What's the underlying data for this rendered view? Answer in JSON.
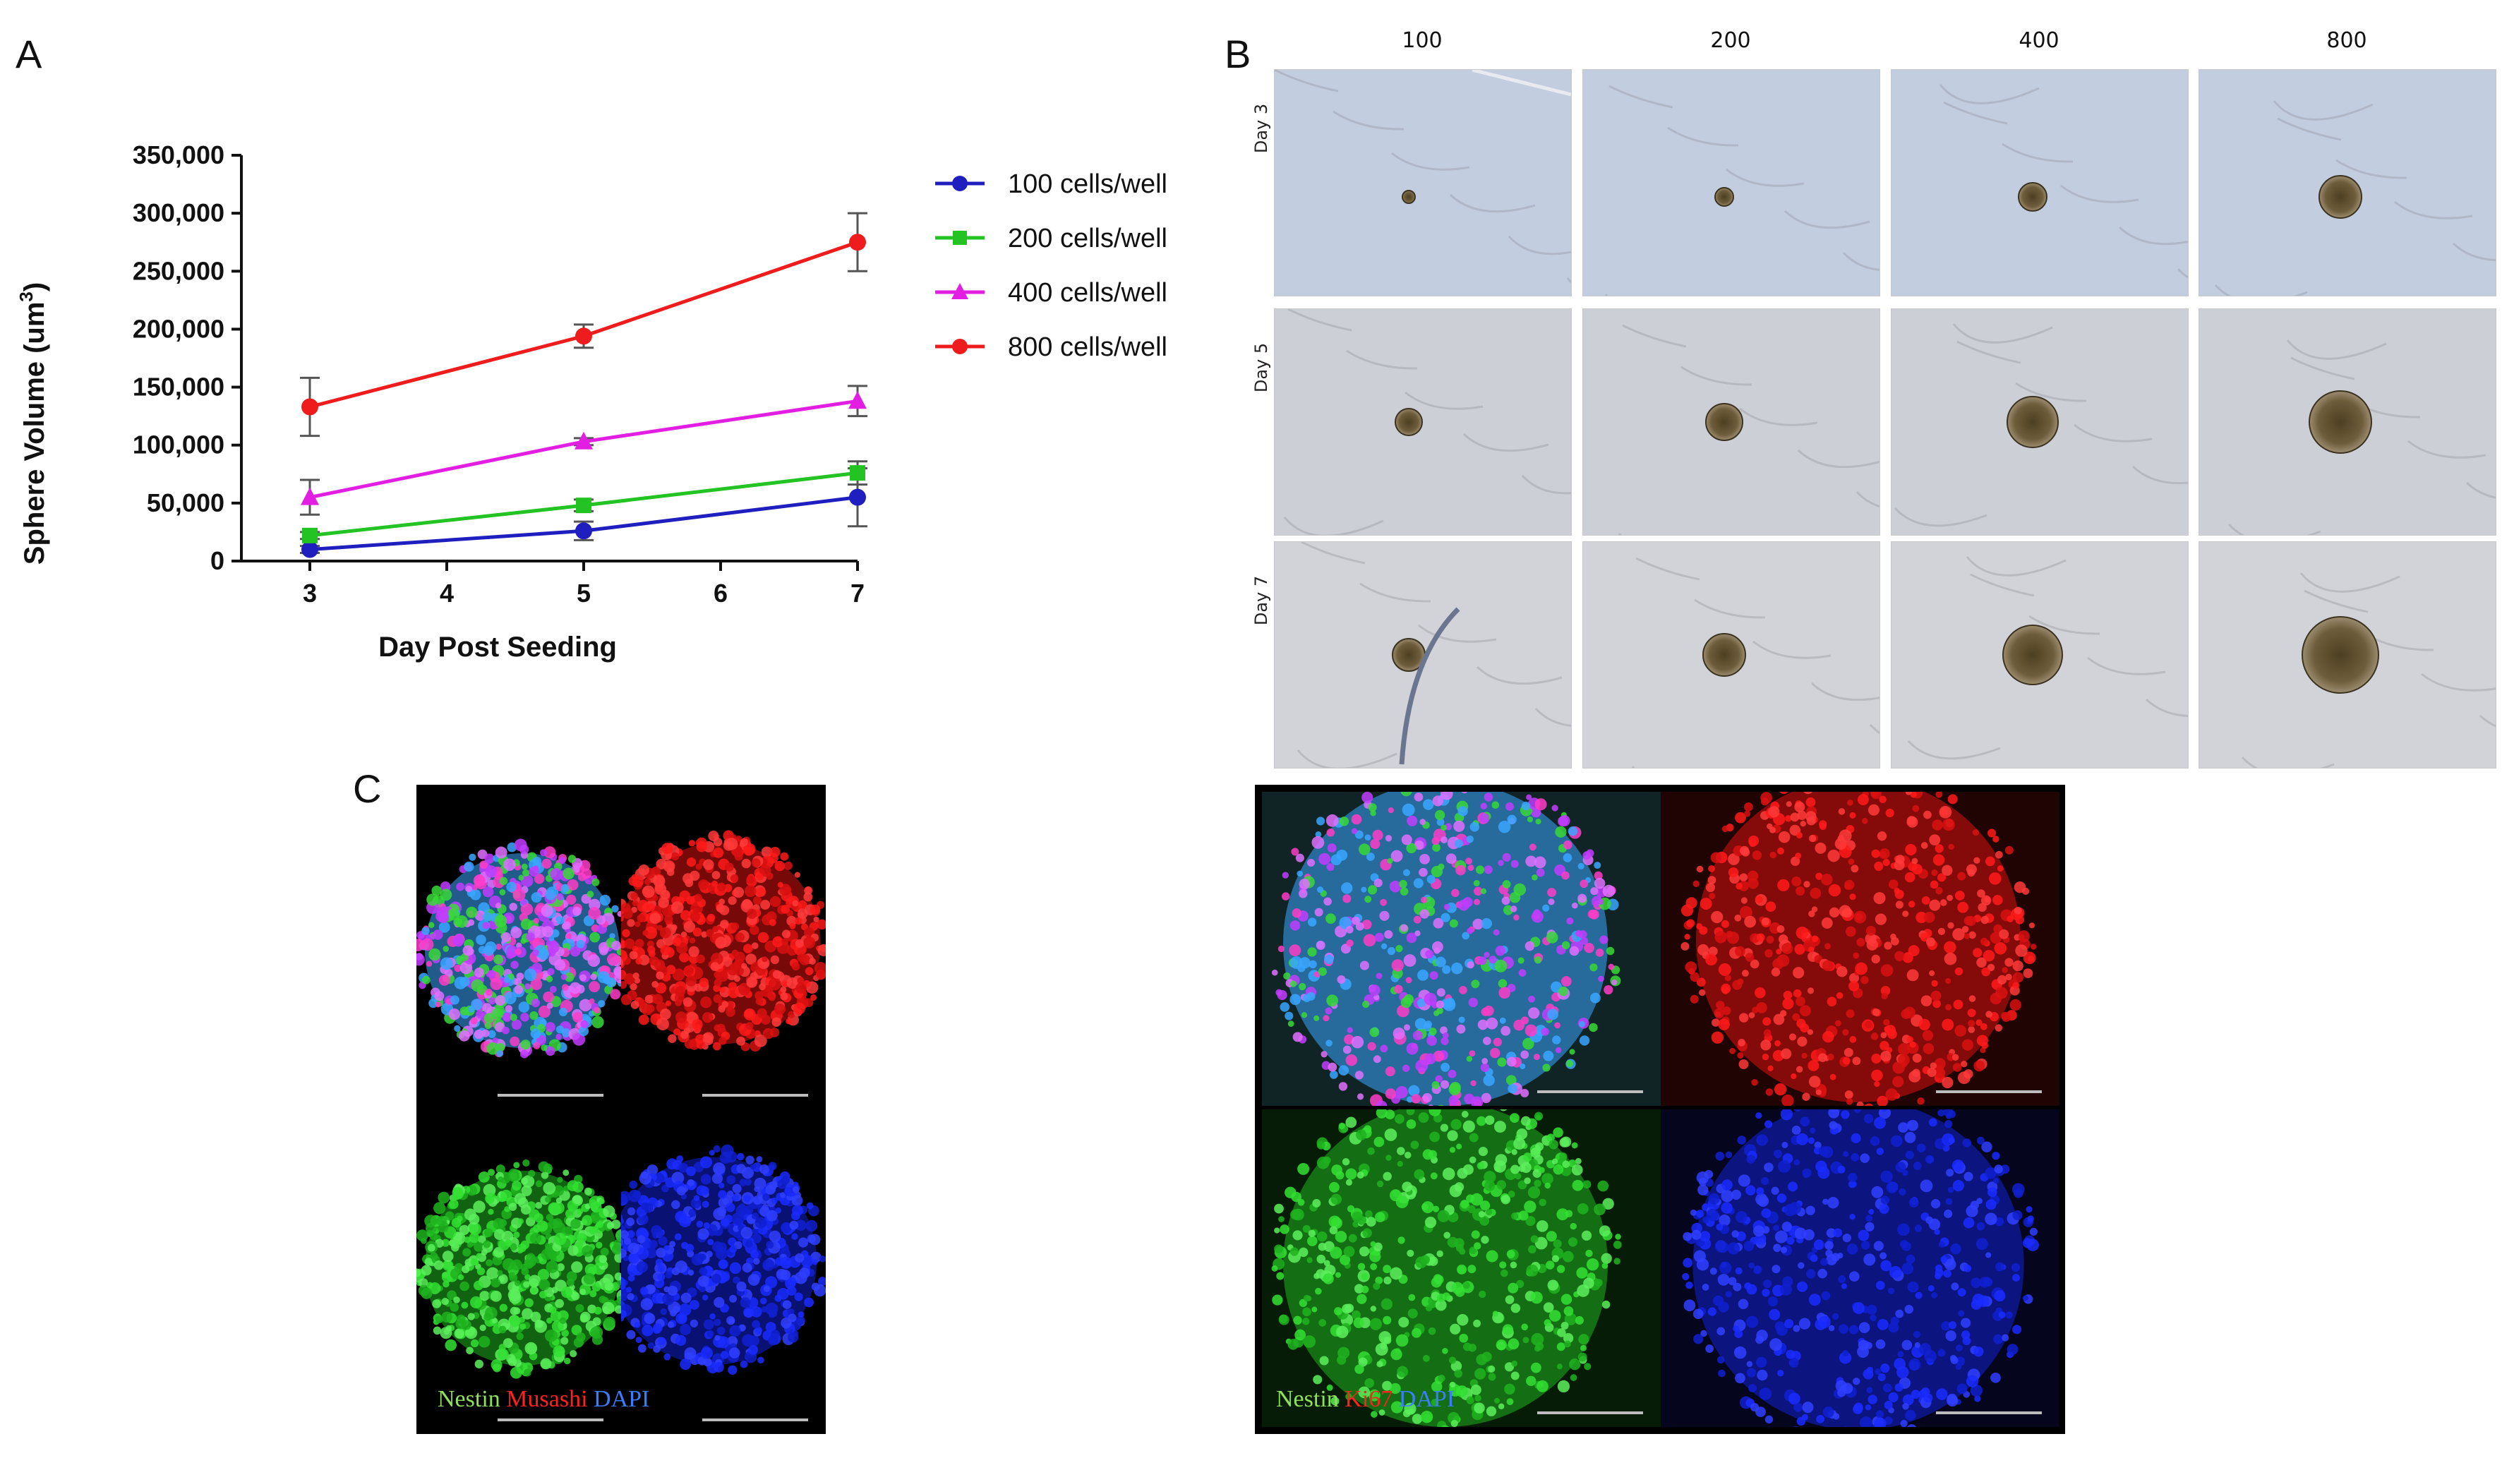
{
  "panels": {
    "a": "A",
    "b": "B",
    "c": "C"
  },
  "chart_data": {
    "type": "line",
    "x": [
      3,
      5,
      7
    ],
    "xticks": [
      "3",
      "4",
      "5",
      "6",
      "7"
    ],
    "xlim": [
      2.5,
      7.0
    ],
    "ylim": [
      0,
      350000
    ],
    "yticks": [
      "0",
      "50,000",
      "100,000",
      "150,000",
      "200,000",
      "250,000",
      "300,000",
      "350,000"
    ],
    "xlabel": "Day Post Seeding",
    "ylabel_main": "Sphere Volume (um",
    "ylabel_sup": "3",
    "ylabel_end": ")",
    "series": [
      {
        "name": "100 cells/well",
        "color": "#1f1fbf",
        "marker": "circle",
        "values": [
          10000,
          26000,
          55000
        ],
        "err": [
          3000,
          8000,
          25000
        ]
      },
      {
        "name": "200 cells/well",
        "color": "#22c322",
        "marker": "square",
        "values": [
          22000,
          48000,
          76000
        ],
        "err": [
          3000,
          5000,
          10000
        ]
      },
      {
        "name": "400 cells/well",
        "color": "#e21ee2",
        "marker": "triangle",
        "values": [
          55000,
          103000,
          138000
        ],
        "err": [
          15000,
          3000,
          13000
        ]
      },
      {
        "name": "800 cells/well",
        "color": "#ee1c1c",
        "marker": "circle",
        "values": [
          133000,
          194000,
          275000
        ],
        "err": [
          25000,
          10000,
          25000
        ]
      }
    ]
  },
  "microscopy": {
    "columns": [
      "100",
      "200",
      "400",
      "800"
    ],
    "rows": [
      "Day 3",
      "Day 5",
      "Day 7"
    ]
  },
  "fluorescence": {
    "left": {
      "label_1": "Nestin",
      "label_2": "Musashi",
      "label_3": "DAPI",
      "color_1": "#8fe05a",
      "color_2": "#ff2020",
      "color_3": "#3a7dff"
    },
    "right": {
      "label_1": "Nestin",
      "label_2": "Ki67",
      "label_3": "DAPI",
      "color_1": "#8fe05a",
      "color_2": "#ff2020",
      "color_3": "#3a7dff"
    }
  }
}
